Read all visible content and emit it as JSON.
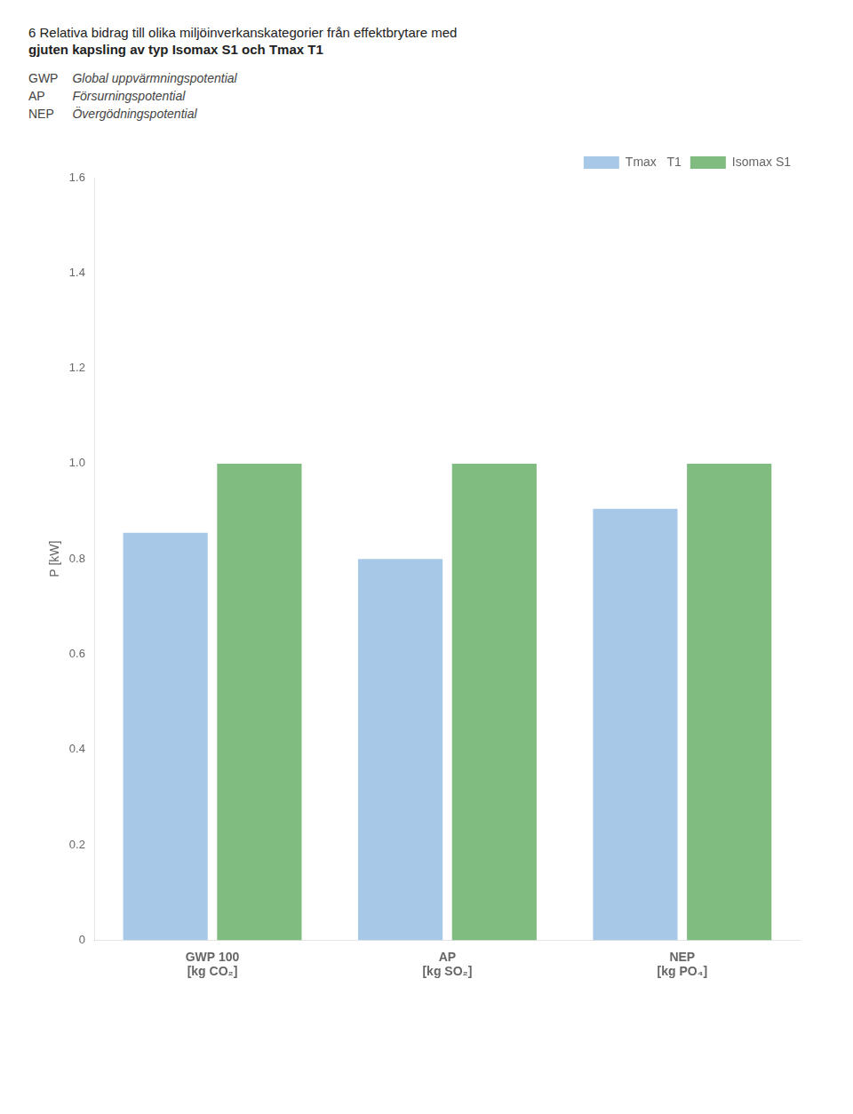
{
  "chart_data": {
    "type": "bar",
    "title": [
      "6  Relativa bidrag till olika miljöinverkanskategorier från effektbrytare med",
      "gjuten kapsling av typ Isomax S1 och Tmax T1"
    ],
    "annotations": [
      [
        "GWP",
        "Global uppvärmningspotential"
      ],
      [
        "AP",
        "Försurningspotential"
      ],
      [
        "NEP",
        "Övergödningspotential"
      ]
    ],
    "y_label": "P [kW]",
    "categories": [
      "GWP 100\n[kg CO₂]",
      "AP\n[kg SO₂]",
      "NEP\n[kg PO₄]"
    ],
    "series": [
      {
        "name": "Tmax   T1",
        "color": "#a8c8e8",
        "values": [
          0.855,
          0.8,
          0.905
        ]
      },
      {
        "name": "Isomax S1",
        "color": "#80bb80",
        "values": [
          1.0,
          1.0,
          1.0
        ]
      }
    ],
    "ylim": [
      0,
      1.6
    ],
    "yticks": [
      0,
      0.2,
      0.4,
      0.6,
      0.8,
      {
        "value": 1.0,
        "label": "1.0"
      },
      1.2,
      1.4,
      1.6
    ],
    "grid": false,
    "legend": "upper right"
  }
}
